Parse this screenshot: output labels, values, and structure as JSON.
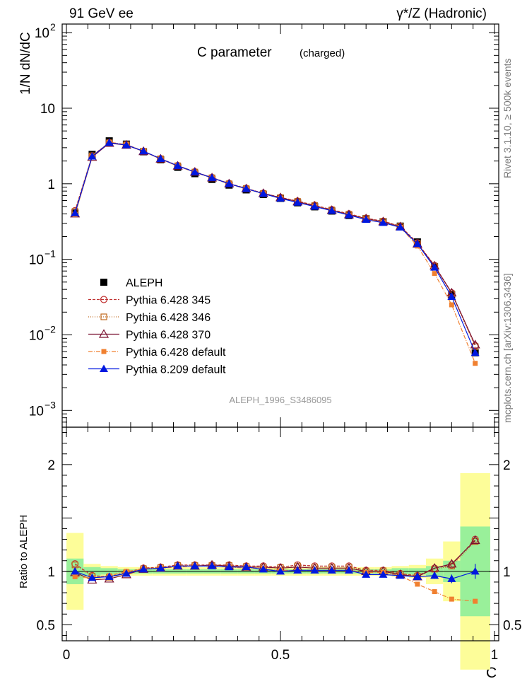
{
  "header": {
    "left": "91 GeV ee",
    "right": "γ*/Z (Hadronic)"
  },
  "side": {
    "rivet": "Rivet 3.1.10, ≥ 500k events",
    "mcplots": "mcplots.cern.ch [arXiv:1306.3436]"
  },
  "plot_title": "C parameter",
  "plot_subtitle": "(charged)",
  "watermark": "ALEPH_1996_S3486095",
  "chart_data": [
    {
      "type": "line",
      "ylabel": "1/N dN/dC",
      "yscale": "log",
      "ylim": [
        0.0006,
        130
      ],
      "xlim": [
        -0.01,
        1.01
      ],
      "ytick_labels": [
        {
          "v": 0.001,
          "base": "10",
          "exp": "−3"
        },
        {
          "v": 0.01,
          "base": "10",
          "exp": "−2"
        },
        {
          "v": 0.1,
          "base": "10",
          "exp": "−1"
        },
        {
          "v": 1,
          "base": "1",
          "exp": ""
        },
        {
          "v": 10,
          "base": "10",
          "exp": ""
        },
        {
          "v": 100,
          "base": "10",
          "exp": "2"
        }
      ],
      "x": [
        0.02,
        0.06,
        0.1,
        0.14,
        0.18,
        0.22,
        0.26,
        0.3,
        0.34,
        0.38,
        0.42,
        0.46,
        0.5,
        0.54,
        0.58,
        0.62,
        0.66,
        0.7,
        0.74,
        0.78,
        0.82,
        0.86,
        0.9,
        0.955
      ],
      "series": [
        {
          "name": "ALEPH",
          "color": "#000000",
          "marker": "square-filled",
          "dash": "",
          "values": [
            0.41,
            2.45,
            3.7,
            3.35,
            2.65,
            2.08,
            1.65,
            1.36,
            1.14,
            0.96,
            0.83,
            0.72,
            0.64,
            0.56,
            0.495,
            0.435,
            0.38,
            0.345,
            0.315,
            0.275,
            0.17,
            0.08,
            0.034,
            0.0058
          ]
        },
        {
          "name": "Pythia 6.428 345",
          "color": "#c03030",
          "marker": "circle-open",
          "dash": "4,2",
          "values": [
            0.44,
            2.35,
            3.5,
            3.3,
            2.7,
            2.15,
            1.74,
            1.44,
            1.21,
            1.01,
            0.87,
            0.75,
            0.66,
            0.59,
            0.52,
            0.455,
            0.4,
            0.35,
            0.32,
            0.275,
            0.165,
            0.083,
            0.036,
            0.0072
          ]
        },
        {
          "name": "Pythia 6.428 346",
          "color": "#c06a20",
          "marker": "square-open",
          "dash": "1,2",
          "values": [
            0.43,
            2.34,
            3.48,
            3.28,
            2.69,
            2.14,
            1.73,
            1.43,
            1.2,
            1.0,
            0.865,
            0.745,
            0.655,
            0.585,
            0.515,
            0.45,
            0.395,
            0.348,
            0.318,
            0.272,
            0.163,
            0.081,
            0.035,
            0.007
          ]
        },
        {
          "name": "Pythia 6.428 370",
          "color": "#7a1030",
          "marker": "triangle-open",
          "dash": "",
          "values": [
            0.4,
            2.25,
            3.45,
            3.25,
            2.68,
            2.13,
            1.72,
            1.43,
            1.2,
            1.0,
            0.86,
            0.745,
            0.655,
            0.58,
            0.51,
            0.445,
            0.39,
            0.345,
            0.315,
            0.27,
            0.16,
            0.082,
            0.036,
            0.0074
          ]
        },
        {
          "name": "Pythia 6.428 default",
          "color": "#f08030",
          "marker": "square-filled-small",
          "dash": "6,2,1,2",
          "values": [
            0.39,
            2.3,
            3.55,
            3.3,
            2.7,
            2.12,
            1.71,
            1.42,
            1.19,
            0.995,
            0.855,
            0.74,
            0.645,
            0.57,
            0.505,
            0.44,
            0.385,
            0.34,
            0.31,
            0.265,
            0.15,
            0.065,
            0.025,
            0.0042
          ]
        },
        {
          "name": "Pythia 8.209 default",
          "color": "#0018e0",
          "marker": "triangle-filled",
          "dash": "",
          "values": [
            0.41,
            2.3,
            3.5,
            3.25,
            2.7,
            2.14,
            1.73,
            1.43,
            1.2,
            1.0,
            0.86,
            0.74,
            0.64,
            0.565,
            0.5,
            0.44,
            0.385,
            0.335,
            0.305,
            0.265,
            0.16,
            0.078,
            0.032,
            0.0058
          ]
        }
      ]
    },
    {
      "type": "line",
      "ylabel": "Ratio to ALEPH",
      "xlabel": "C",
      "ylim": [
        0.35,
        2.35
      ],
      "xlim": [
        -0.01,
        1.01
      ],
      "ytick_labels": [
        {
          "v": 0.5,
          "text": "0.5"
        },
        {
          "v": 1,
          "text": "1"
        },
        {
          "v": 2,
          "text": "2"
        }
      ],
      "xtick_labels": [
        {
          "v": 0,
          "text": "0"
        },
        {
          "v": 0.5,
          "text": "0.5"
        },
        {
          "v": 1,
          "text": "1"
        }
      ],
      "bins": [
        [
          0.0,
          0.04
        ],
        [
          0.04,
          0.08
        ],
        [
          0.08,
          0.12
        ],
        [
          0.12,
          0.16
        ],
        [
          0.16,
          0.2
        ],
        [
          0.2,
          0.24
        ],
        [
          0.24,
          0.28
        ],
        [
          0.28,
          0.32
        ],
        [
          0.32,
          0.36
        ],
        [
          0.36,
          0.4
        ],
        [
          0.4,
          0.44
        ],
        [
          0.44,
          0.48
        ],
        [
          0.48,
          0.52
        ],
        [
          0.52,
          0.56
        ],
        [
          0.56,
          0.6
        ],
        [
          0.6,
          0.64
        ],
        [
          0.64,
          0.68
        ],
        [
          0.68,
          0.72
        ],
        [
          0.72,
          0.76
        ],
        [
          0.76,
          0.8
        ],
        [
          0.8,
          0.84
        ],
        [
          0.84,
          0.88
        ],
        [
          0.88,
          0.92
        ],
        [
          0.92,
          0.99
        ]
      ],
      "band_stat": [
        0.12,
        0.04,
        0.03,
        0.02,
        0.02,
        0.02,
        0.02,
        0.02,
        0.02,
        0.02,
        0.02,
        0.02,
        0.02,
        0.02,
        0.02,
        0.02,
        0.02,
        0.02,
        0.02,
        0.03,
        0.03,
        0.05,
        0.1,
        0.42
      ],
      "band_total": [
        0.36,
        0.07,
        0.05,
        0.04,
        0.04,
        0.04,
        0.04,
        0.04,
        0.04,
        0.04,
        0.04,
        0.04,
        0.04,
        0.04,
        0.04,
        0.04,
        0.04,
        0.04,
        0.04,
        0.05,
        0.06,
        0.12,
        0.28,
        0.92
      ],
      "band_colors": {
        "stat": "#99f09a",
        "total": "#fdfd99"
      },
      "series": [
        {
          "name": "Pythia 6.428 345",
          "color": "#c03030",
          "marker": "circle-open",
          "dash": "4,2",
          "values": [
            1.07,
            0.96,
            0.95,
            0.99,
            1.03,
            1.04,
            1.06,
            1.06,
            1.06,
            1.06,
            1.05,
            1.05,
            1.04,
            1.06,
            1.05,
            1.05,
            1.05,
            1.01,
            1.01,
            0.98,
            0.96,
            1.03,
            1.06,
            1.3
          ]
        },
        {
          "name": "Pythia 6.428 346",
          "color": "#c06a20",
          "marker": "square-open",
          "dash": "1,2",
          "values": [
            1.06,
            0.955,
            0.945,
            0.985,
            1.025,
            1.035,
            1.055,
            1.055,
            1.055,
            1.055,
            1.045,
            1.04,
            1.035,
            1.05,
            1.04,
            1.04,
            1.04,
            1.0,
            1.005,
            0.975,
            0.955,
            1.02,
            1.05,
            1.28
          ]
        },
        {
          "name": "Pythia 6.428 370",
          "color": "#7a1030",
          "marker": "triangle-open",
          "dash": "",
          "values": [
            0.99,
            0.92,
            0.93,
            0.97,
            1.02,
            1.03,
            1.05,
            1.05,
            1.06,
            1.05,
            1.04,
            1.04,
            1.03,
            1.04,
            1.03,
            1.03,
            1.03,
            1.0,
            1.0,
            0.97,
            0.95,
            1.03,
            1.07,
            1.29
          ]
        },
        {
          "name": "Pythia 6.428 default",
          "color": "#f08030",
          "marker": "square-filled-small",
          "dash": "6,2,1,2",
          "values": [
            0.95,
            0.94,
            0.96,
            1.0,
            1.02,
            1.03,
            1.04,
            1.05,
            1.05,
            1.04,
            1.03,
            1.03,
            1.01,
            1.01,
            1.01,
            1.01,
            1.01,
            0.99,
            0.99,
            0.96,
            0.88,
            0.81,
            0.74,
            0.72
          ]
        },
        {
          "name": "Pythia 8.209 default",
          "color": "#0018e0",
          "marker": "triangle-filled",
          "dash": "",
          "values": [
            1.0,
            0.94,
            0.95,
            0.98,
            1.02,
            1.03,
            1.05,
            1.05,
            1.05,
            1.04,
            1.04,
            1.02,
            1.0,
            1.01,
            1.01,
            1.01,
            1.01,
            0.97,
            0.97,
            0.96,
            0.95,
            0.96,
            0.93,
            1.0
          ],
          "errors": [
            0.02,
            0.01,
            0.01,
            0.01,
            0.01,
            0.01,
            0.01,
            0.01,
            0.01,
            0.01,
            0.01,
            0.01,
            0.01,
            0.01,
            0.01,
            0.01,
            0.01,
            0.01,
            0.01,
            0.02,
            0.02,
            0.03,
            0.04,
            0.07
          ]
        }
      ]
    }
  ]
}
